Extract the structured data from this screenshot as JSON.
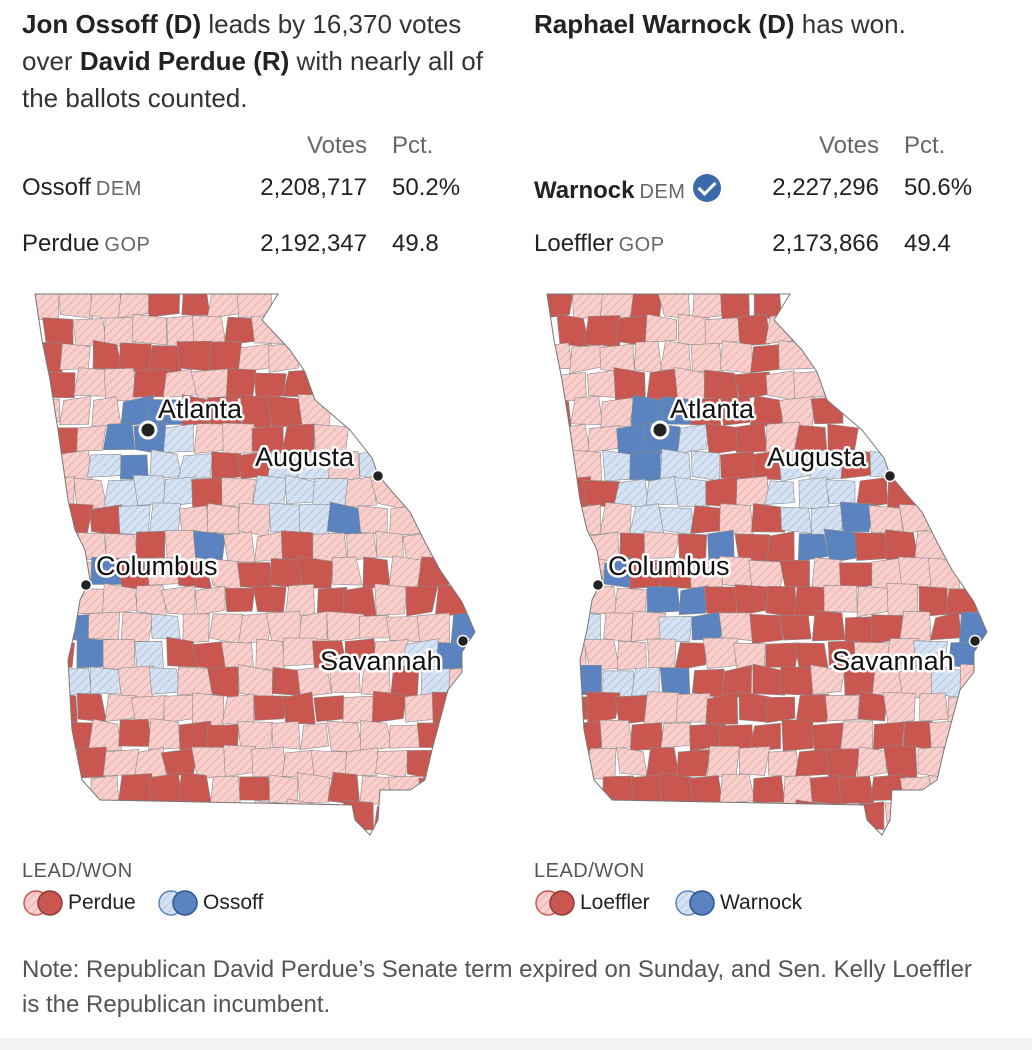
{
  "left": {
    "headline": {
      "part1": "Jon Ossoff (D)",
      "part2": " leads by 16,370 votes over ",
      "part3": "David Perdue (R)",
      "part4": " with nearly all of the ballots counted."
    },
    "table": {
      "votes_header": "Votes",
      "pct_header": "Pct.",
      "rows": [
        {
          "name": "Ossoff",
          "party": "DEM",
          "votes": "2,208,717",
          "pct": "50.2%"
        },
        {
          "name": "Perdue",
          "party": "GOP",
          "votes": "2,192,347",
          "pct": "49.8"
        }
      ]
    },
    "cities": {
      "atlanta": "Atlanta",
      "augusta": "Augusta",
      "columbus": "Columbus",
      "savannah": "Savannah"
    },
    "legend": {
      "title": "LEAD/WON",
      "rep": "Perdue",
      "dem": "Ossoff"
    }
  },
  "right": {
    "headline": {
      "part1": "Raphael Warnock (D)",
      "part2": " has won."
    },
    "table": {
      "votes_header": "Votes",
      "pct_header": "Pct.",
      "rows": [
        {
          "name": "Warnock",
          "party": "DEM",
          "votes": "2,227,296",
          "pct": "50.6%",
          "winner": true
        },
        {
          "name": "Loeffler",
          "party": "GOP",
          "votes": "2,173,866",
          "pct": "49.4"
        }
      ]
    },
    "cities": {
      "atlanta": "Atlanta",
      "augusta": "Augusta",
      "columbus": "Columbus",
      "savannah": "Savannah"
    },
    "legend": {
      "title": "LEAD/WON",
      "rep": "Loeffler",
      "dem": "Warnock"
    }
  },
  "note": "Note: Republican David Perdue’s Senate term expired on Sunday, and Sen. Kelly Loeffler is the Republican incumbent.",
  "colors": {
    "rep_won": "#c9574f",
    "rep_lead": "#f4c3c1",
    "dem_won": "#5b83bf",
    "dem_lead": "#c8d7ec",
    "county_border": "#8a8a8a",
    "dot": "#222222",
    "check": "#3b6aa8"
  },
  "icons": {
    "winner_check": "check-circle-icon",
    "city_marker": "dot-icon"
  }
}
